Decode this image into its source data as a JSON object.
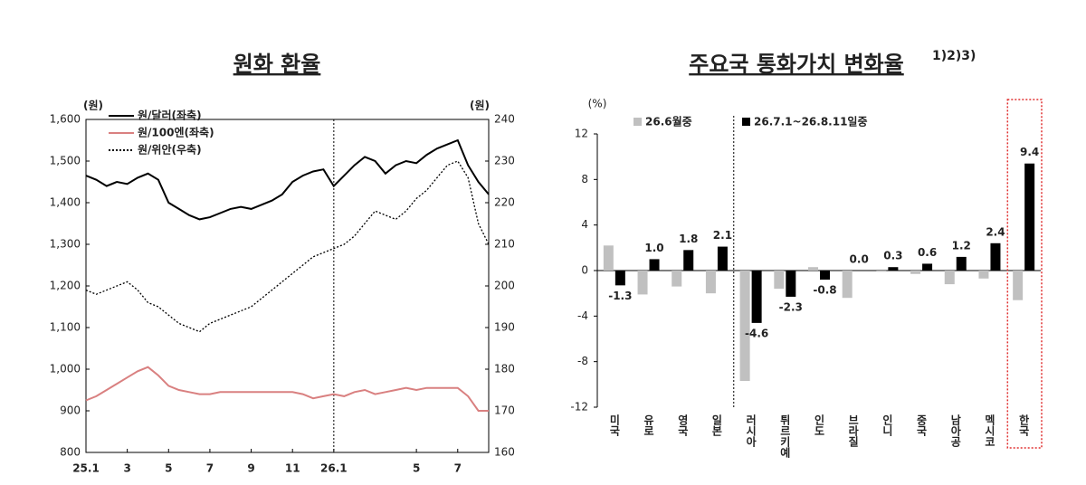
{
  "chart_data": [
    {
      "type": "line",
      "title": "원화 환율",
      "y_unit": "(원)",
      "y2_unit": "(원)",
      "categories": [
        "25.1",
        null,
        null,
        null,
        "3",
        null,
        null,
        null,
        "5",
        null,
        null,
        null,
        "7",
        null,
        null,
        null,
        "9",
        null,
        null,
        null,
        "11",
        null,
        null,
        null,
        "26.1",
        null,
        null,
        null,
        null,
        null,
        null,
        null,
        "5",
        null,
        null,
        null,
        "7",
        null,
        null,
        null
      ],
      "series": [
        {
          "name": "원/달러(좌축)",
          "color": "#000000",
          "line_style": "solid",
          "axis": "y",
          "values": [
            1465,
            1455,
            1440,
            1450,
            1445,
            1460,
            1470,
            1455,
            1400,
            1385,
            1370,
            1360,
            1365,
            1375,
            1385,
            1390,
            1385,
            1395,
            1405,
            1420,
            1450,
            1465,
            1475,
            1480,
            1440,
            1465,
            1490,
            1510,
            1500,
            1470,
            1490,
            1500,
            1495,
            1515,
            1530,
            1540,
            1550,
            1490,
            1450,
            1420
          ]
        },
        {
          "name": "원/100엔(좌축)",
          "color": "#d98080",
          "line_style": "solid",
          "axis": "y",
          "values": [
            925,
            935,
            950,
            965,
            980,
            995,
            1005,
            985,
            960,
            950,
            945,
            940,
            940,
            945,
            945,
            945,
            945,
            945,
            945,
            945,
            945,
            940,
            930,
            935,
            940,
            935,
            945,
            950,
            940,
            945,
            950,
            955,
            950,
            955,
            955,
            955,
            955,
            935,
            900,
            900
          ]
        },
        {
          "name": "원/위안(우축)",
          "color": "#000000",
          "line_style": "dotted",
          "axis": "y2",
          "values": [
            199,
            198,
            199,
            200,
            201,
            199,
            196,
            195,
            193,
            191,
            190,
            189,
            191,
            192,
            193,
            194,
            195,
            197,
            199,
            201,
            203,
            205,
            207,
            208,
            209,
            210,
            212,
            215,
            218,
            217,
            216,
            218,
            221,
            223,
            226,
            229,
            230,
            226,
            215,
            210
          ]
        }
      ],
      "ylim": [
        800,
        1600
      ],
      "yticks": [
        800,
        900,
        {
          "value": 1000,
          "label": "1,000"
        },
        {
          "value": 1100,
          "label": "1,100"
        },
        {
          "value": 1200,
          "label": "1,200"
        },
        {
          "value": 1300,
          "label": "1,300"
        },
        {
          "value": 1400,
          "label": "1,400"
        },
        {
          "value": 1500,
          "label": "1,500"
        },
        {
          "value": 1600,
          "label": "1,600"
        }
      ],
      "y2lim": [
        160,
        240
      ],
      "y2ticks": [
        160,
        170,
        180,
        190,
        200,
        210,
        220,
        230,
        240
      ],
      "divider_at": 24
    },
    {
      "type": "bar",
      "title": "주요국 통화가치 변화율",
      "title_note": "1)2)3)",
      "y_unit": "(%)",
      "categories": [
        "미국",
        "유로",
        "영국",
        "일본",
        "러시아",
        "튀르키예",
        "인도",
        "브라질",
        "인니",
        "중국",
        "남아공",
        "멕시코",
        "한국"
      ],
      "series": [
        {
          "name": "26.6월중",
          "color": "#c0c0c0",
          "values": [
            2.2,
            -2.1,
            -1.4,
            -2.0,
            -9.7,
            -1.6,
            0.3,
            -2.4,
            -0.1,
            -0.3,
            -1.2,
            -0.7,
            -2.6
          ]
        },
        {
          "name": "26.7.1~26.8.11일중",
          "color": "#000000",
          "values": [
            -1.3,
            1.0,
            1.8,
            2.1,
            -4.6,
            -2.3,
            -0.8,
            0.0,
            0.3,
            0.6,
            1.2,
            2.4,
            9.4
          ],
          "value_labels": [
            "-1.3",
            "1.0",
            "1.8",
            "2.1",
            "-4.6",
            "-2.3",
            "-0.8",
            "0.0",
            "0.3",
            "0.6",
            "1.2",
            "2.4",
            "9.4"
          ]
        }
      ],
      "ylim": [
        -12,
        12
      ],
      "yticks": [
        -12,
        -8,
        -4,
        0,
        4,
        8,
        12
      ],
      "divider_after": 3,
      "highlight": 12,
      "highlight_color": "#e03030"
    }
  ]
}
